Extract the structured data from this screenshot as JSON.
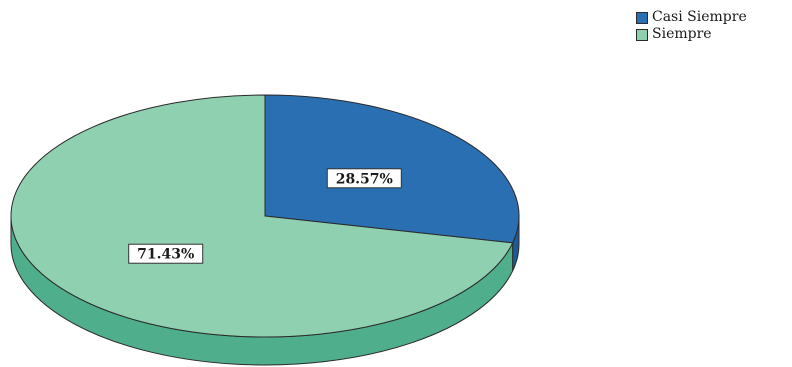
{
  "chart_data": {
    "type": "pie",
    "title": "",
    "slices": [
      {
        "label": "Casi Siempre",
        "value": 28.57,
        "display": "28.57%",
        "color": "#2b6fb3",
        "side_color": "#1f5a94"
      },
      {
        "label": "Siempre",
        "value": 71.43,
        "display": "71.43%",
        "color": "#8fd0b0",
        "side_color": "#4fae8c"
      }
    ],
    "legend_position": "top-right",
    "start_angle": "12 o'clock",
    "direction": "clockwise",
    "style": "3d"
  }
}
